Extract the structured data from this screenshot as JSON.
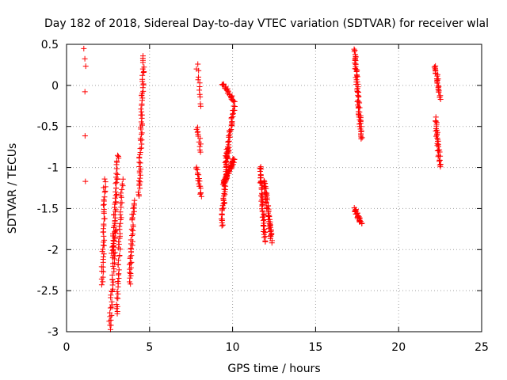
{
  "chart_data": {
    "type": "scatter",
    "title": "Day 182 of 2018, Sidereal Day-to-day VTEC variation (SDTVAR) for receiver wlal",
    "xlabel": "GPS time / hours",
    "ylabel": "SDTVAR / TECUs",
    "xlim": [
      0,
      25
    ],
    "ylim": [
      -3,
      0.5
    ],
    "x_ticks": [
      0,
      5,
      10,
      15,
      20,
      25
    ],
    "x_tick_labels": [
      "0",
      "5",
      "10",
      "15",
      "20",
      "25"
    ],
    "y_ticks": [
      0.5,
      0,
      -0.5,
      -1,
      -1.5,
      -2,
      -2.5,
      -3
    ],
    "y_tick_labels": [
      "0.5",
      "0",
      "-0.5",
      "-1",
      "-1.5",
      "-2",
      "-2.5",
      "-3"
    ],
    "grid": true,
    "marker": "+",
    "marker_color": "#ff0000",
    "clusters": [
      {
        "x": [
          1.1,
          1.1
        ],
        "y": [
          0.43,
          0.22
        ],
        "n": 3
      },
      {
        "x": [
          1.1,
          1.1
        ],
        "y": [
          -0.08,
          -0.08
        ],
        "n": 1
      },
      {
        "x": [
          1.1,
          1.1
        ],
        "y": [
          -0.6,
          -0.6
        ],
        "n": 1
      },
      {
        "x": [
          1.1,
          1.1
        ],
        "y": [
          -1.17,
          -1.17
        ],
        "n": 1
      },
      {
        "x": [
          2.15,
          2.3
        ],
        "y": [
          -2.42,
          -1.15
        ],
        "n": 40
      },
      {
        "x": [
          2.6,
          2.95
        ],
        "y": [
          -2.97,
          -1.75
        ],
        "n": 40
      },
      {
        "x": [
          2.75,
          3.1
        ],
        "y": [
          -2.1,
          -0.85
        ],
        "n": 50
      },
      {
        "x": [
          3.0,
          3.35
        ],
        "y": [
          -2.8,
          -1.15
        ],
        "n": 45
      },
      {
        "x": [
          3.8,
          4.05
        ],
        "y": [
          -2.4,
          -1.4
        ],
        "n": 40
      },
      {
        "x": [
          4.35,
          4.65
        ],
        "y": [
          -1.35,
          0.35
        ],
        "n": 60
      },
      {
        "x": [
          7.85,
          8.1
        ],
        "y": [
          0.25,
          -0.25
        ],
        "n": 12
      },
      {
        "x": [
          7.85,
          8.1
        ],
        "y": [
          -0.5,
          -0.8
        ],
        "n": 12
      },
      {
        "x": [
          7.85,
          8.1
        ],
        "y": [
          -1.0,
          -1.35
        ],
        "n": 18
      },
      {
        "x": [
          9.35,
          9.75
        ],
        "y": [
          -1.7,
          -0.75
        ],
        "n": 55
      },
      {
        "x": [
          9.45,
          10.1
        ],
        "y": [
          -1.2,
          -0.9
        ],
        "n": 55
      },
      {
        "x": [
          9.55,
          10.1
        ],
        "y": [
          -0.95,
          -0.25
        ],
        "n": 40
      },
      {
        "x": [
          9.4,
          10.1
        ],
        "y": [
          0.03,
          -0.2
        ],
        "n": 25
      },
      {
        "x": [
          11.65,
          11.95
        ],
        "y": [
          -0.98,
          -1.9
        ],
        "n": 50
      },
      {
        "x": [
          11.9,
          12.35
        ],
        "y": [
          -1.15,
          -1.9
        ],
        "n": 55
      },
      {
        "x": [
          17.35,
          17.75
        ],
        "y": [
          0.43,
          -0.65
        ],
        "n": 70
      },
      {
        "x": [
          17.35,
          17.75
        ],
        "y": [
          -1.5,
          -1.68
        ],
        "n": 30
      },
      {
        "x": [
          22.2,
          22.5
        ],
        "y": [
          0.25,
          -0.15
        ],
        "n": 30
      },
      {
        "x": [
          22.2,
          22.5
        ],
        "y": [
          -0.4,
          -0.98
        ],
        "n": 35
      }
    ]
  }
}
